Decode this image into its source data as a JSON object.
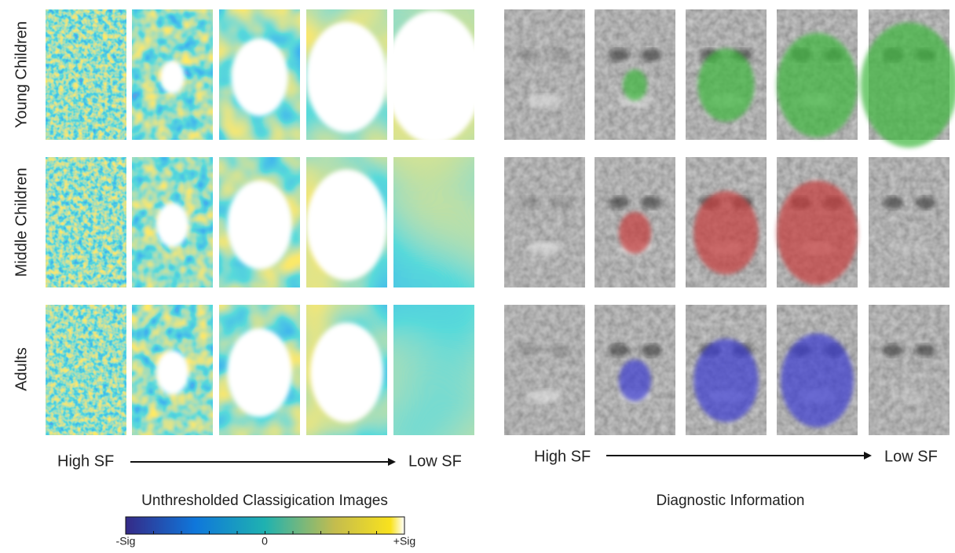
{
  "left_panel": {
    "rows": [
      "Young Children",
      "Middle Children",
      "Adults"
    ],
    "axis": {
      "start": "High SF",
      "end": "Low SF"
    },
    "title": "Unthresholded Classigication Images",
    "colorbar": {
      "min": "-Sig",
      "mid": "0",
      "max": "+Sig"
    }
  },
  "right_panel": {
    "axis": {
      "start": "High SF",
      "end": "Low SF"
    },
    "title": "Diagnostic Information"
  }
}
